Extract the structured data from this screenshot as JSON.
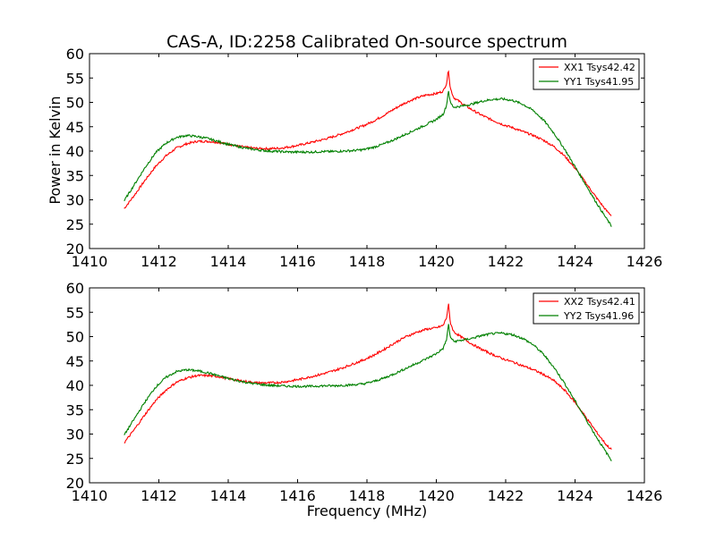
{
  "figure": {
    "title": "CAS-A, ID:2258 Calibrated On-source spectrum",
    "ylabel": "Power in Kelvin",
    "xlabel": "Frequency (MHz)"
  },
  "chart_data": [
    {
      "type": "line",
      "title": "CAS-A, ID:2258 Calibrated On-source spectrum",
      "ylabel": "Power in Kelvin",
      "xlabel": "",
      "xlim": [
        1410,
        1426
      ],
      "ylim": [
        20,
        60
      ],
      "xticks": [
        1410,
        1412,
        1414,
        1416,
        1418,
        1420,
        1422,
        1424,
        1426
      ],
      "yticks": [
        20,
        25,
        30,
        35,
        40,
        45,
        50,
        55,
        60
      ],
      "legend_placement": "top-right",
      "grid": false,
      "series": [
        {
          "name": "XX1 Tsys42.42",
          "color": "#ff0000",
          "x": [
            1411.0,
            1411.3,
            1411.6,
            1411.9,
            1412.2,
            1412.5,
            1412.8,
            1413.1,
            1413.4,
            1413.7,
            1414.0,
            1414.3,
            1414.6,
            1414.9,
            1415.2,
            1415.5,
            1415.8,
            1416.1,
            1416.4,
            1416.7,
            1417.0,
            1417.3,
            1417.6,
            1417.9,
            1418.2,
            1418.5,
            1418.8,
            1419.1,
            1419.4,
            1419.7,
            1420.0,
            1420.2,
            1420.3,
            1420.35,
            1420.4,
            1420.5,
            1420.7,
            1421.0,
            1421.3,
            1421.6,
            1421.9,
            1422.2,
            1422.5,
            1422.8,
            1423.1,
            1423.4,
            1423.7,
            1424.0,
            1424.3,
            1424.6,
            1424.9,
            1425.05
          ],
          "y": [
            28.2,
            31.0,
            34.0,
            36.8,
            39.0,
            40.6,
            41.5,
            42.0,
            42.0,
            41.8,
            41.4,
            41.0,
            40.7,
            40.5,
            40.5,
            40.6,
            40.9,
            41.3,
            41.8,
            42.3,
            42.9,
            43.6,
            44.4,
            45.2,
            46.2,
            47.4,
            48.7,
            49.9,
            50.8,
            51.5,
            51.8,
            52.3,
            54.0,
            56.8,
            53.0,
            51.0,
            50.0,
            48.6,
            47.4,
            46.4,
            45.5,
            44.8,
            44.0,
            43.2,
            42.2,
            40.9,
            39.0,
            36.5,
            33.6,
            30.6,
            27.8,
            26.8
          ]
        },
        {
          "name": "YY1 Tsys41.95",
          "color": "#008000",
          "x": [
            1411.0,
            1411.3,
            1411.6,
            1411.9,
            1412.2,
            1412.5,
            1412.8,
            1413.1,
            1413.4,
            1413.7,
            1414.0,
            1414.3,
            1414.6,
            1414.9,
            1415.2,
            1415.5,
            1415.8,
            1416.1,
            1416.4,
            1416.7,
            1417.0,
            1417.3,
            1417.6,
            1417.9,
            1418.2,
            1418.5,
            1418.8,
            1419.1,
            1419.4,
            1419.7,
            1420.0,
            1420.2,
            1420.3,
            1420.35,
            1420.4,
            1420.5,
            1420.7,
            1421.0,
            1421.3,
            1421.6,
            1421.9,
            1422.2,
            1422.5,
            1422.8,
            1423.1,
            1423.4,
            1423.7,
            1424.0,
            1424.3,
            1424.6,
            1424.9,
            1425.05
          ],
          "y": [
            29.8,
            33.2,
            36.6,
            39.6,
            41.6,
            42.8,
            43.2,
            43.0,
            42.6,
            42.0,
            41.4,
            40.9,
            40.5,
            40.2,
            40.0,
            39.9,
            39.8,
            39.8,
            39.8,
            39.9,
            39.9,
            40.0,
            40.1,
            40.3,
            40.8,
            41.5,
            42.4,
            43.4,
            44.4,
            45.4,
            46.5,
            47.6,
            49.5,
            52.6,
            50.0,
            49.0,
            49.2,
            49.6,
            50.2,
            50.6,
            50.7,
            50.4,
            49.6,
            48.3,
            46.3,
            43.6,
            40.4,
            36.8,
            33.2,
            29.6,
            26.2,
            24.6
          ]
        }
      ]
    },
    {
      "type": "line",
      "title": "",
      "ylabel": "",
      "xlabel": "Frequency (MHz)",
      "xlim": [
        1410,
        1426
      ],
      "ylim": [
        20,
        60
      ],
      "xticks": [
        1410,
        1412,
        1414,
        1416,
        1418,
        1420,
        1422,
        1424,
        1426
      ],
      "yticks": [
        20,
        25,
        30,
        35,
        40,
        45,
        50,
        55,
        60
      ],
      "legend_placement": "top-right",
      "grid": false,
      "series": [
        {
          "name": "XX2 Tsys42.41",
          "color": "#ff0000",
          "x": [
            1411.0,
            1411.3,
            1411.6,
            1411.9,
            1412.2,
            1412.5,
            1412.8,
            1413.1,
            1413.4,
            1413.7,
            1414.0,
            1414.3,
            1414.6,
            1414.9,
            1415.2,
            1415.5,
            1415.8,
            1416.1,
            1416.4,
            1416.7,
            1417.0,
            1417.3,
            1417.6,
            1417.9,
            1418.2,
            1418.5,
            1418.8,
            1419.1,
            1419.4,
            1419.7,
            1420.0,
            1420.2,
            1420.3,
            1420.35,
            1420.4,
            1420.5,
            1420.7,
            1421.0,
            1421.3,
            1421.6,
            1421.9,
            1422.2,
            1422.5,
            1422.8,
            1423.1,
            1423.4,
            1423.7,
            1424.0,
            1424.3,
            1424.6,
            1424.9,
            1425.05
          ],
          "y": [
            28.2,
            31.0,
            34.0,
            36.8,
            39.0,
            40.6,
            41.5,
            42.0,
            42.0,
            41.8,
            41.4,
            41.0,
            40.7,
            40.5,
            40.5,
            40.6,
            40.9,
            41.3,
            41.8,
            42.3,
            42.9,
            43.6,
            44.4,
            45.2,
            46.2,
            47.4,
            48.7,
            49.9,
            50.8,
            51.5,
            51.8,
            52.3,
            54.0,
            56.8,
            53.0,
            51.0,
            50.0,
            48.6,
            47.4,
            46.4,
            45.5,
            44.8,
            44.0,
            43.2,
            42.2,
            40.9,
            39.0,
            36.5,
            33.6,
            30.6,
            27.8,
            26.8
          ]
        },
        {
          "name": "YY2 Tsys41.96",
          "color": "#008000",
          "x": [
            1411.0,
            1411.3,
            1411.6,
            1411.9,
            1412.2,
            1412.5,
            1412.8,
            1413.1,
            1413.4,
            1413.7,
            1414.0,
            1414.3,
            1414.6,
            1414.9,
            1415.2,
            1415.5,
            1415.8,
            1416.1,
            1416.4,
            1416.7,
            1417.0,
            1417.3,
            1417.6,
            1417.9,
            1418.2,
            1418.5,
            1418.8,
            1419.1,
            1419.4,
            1419.7,
            1420.0,
            1420.2,
            1420.3,
            1420.35,
            1420.4,
            1420.5,
            1420.7,
            1421.0,
            1421.3,
            1421.6,
            1421.9,
            1422.2,
            1422.5,
            1422.8,
            1423.1,
            1423.4,
            1423.7,
            1424.0,
            1424.3,
            1424.6,
            1424.9,
            1425.05
          ],
          "y": [
            29.8,
            33.2,
            36.6,
            39.6,
            41.6,
            42.8,
            43.2,
            43.0,
            42.6,
            42.0,
            41.4,
            40.9,
            40.5,
            40.2,
            40.0,
            39.9,
            39.8,
            39.8,
            39.8,
            39.9,
            39.9,
            40.0,
            40.1,
            40.3,
            40.8,
            41.5,
            42.4,
            43.4,
            44.4,
            45.4,
            46.5,
            47.6,
            49.5,
            52.6,
            50.0,
            49.0,
            49.2,
            49.6,
            50.2,
            50.6,
            50.7,
            50.4,
            49.6,
            48.3,
            46.3,
            43.6,
            40.4,
            36.8,
            33.2,
            29.6,
            26.2,
            24.6
          ]
        }
      ]
    }
  ]
}
